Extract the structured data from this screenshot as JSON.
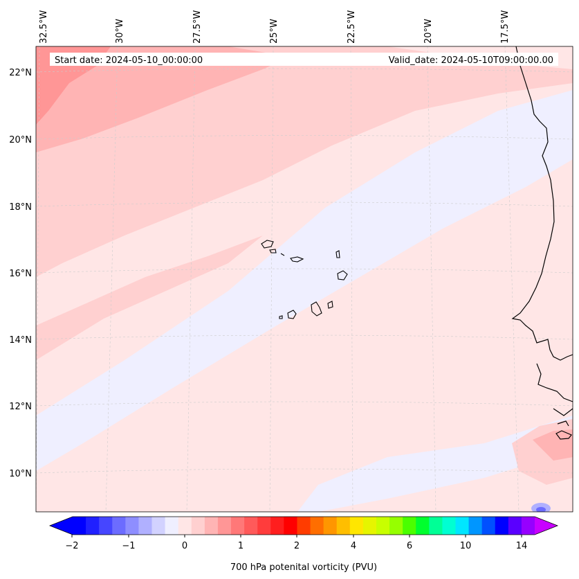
{
  "header": {
    "start_date": "Start date: 2024-05-10_00:00:00",
    "valid_date": "Valid_date: 2024-05-10T09:00:00.00"
  },
  "map": {
    "longitude_labels": [
      "32.5°W",
      "30°W",
      "27.5°W",
      "25°W",
      "22.5°W",
      "20°W",
      "17.5°W"
    ],
    "latitude_labels": [
      "22°N",
      "20°N",
      "18°N",
      "16°N",
      "14°N",
      "12°N",
      "10°N"
    ]
  },
  "colorbar": {
    "label": "700 hPa potenital vorticity (PVU)",
    "ticks": [
      "−2",
      "−1",
      "0",
      "1",
      "2",
      "4",
      "6",
      "10",
      "14"
    ],
    "colors": [
      "#0000ff",
      "#2020ff",
      "#4646ff",
      "#6c6cff",
      "#8e8eff",
      "#b0b0ff",
      "#d2d2ff",
      "#efefff",
      "#ffe6e6",
      "#ffd0d0",
      "#ffb4b4",
      "#ff9696",
      "#ff7878",
      "#ff5a5a",
      "#ff3c3c",
      "#ff1e1e",
      "#ff0000",
      "#ff3c00",
      "#ff6e00",
      "#ff9600",
      "#ffbe00",
      "#ffe600",
      "#e6f500",
      "#c8ff00",
      "#96ff00",
      "#4bff00",
      "#00ff2e",
      "#00ff96",
      "#00ffd2",
      "#00e6ff",
      "#0096ff",
      "#0050ff",
      "#0000ff",
      "#5a00ff",
      "#9600ff"
    ],
    "extend_low_color": "#0000ff",
    "extend_high_color": "#c800ff"
  }
}
